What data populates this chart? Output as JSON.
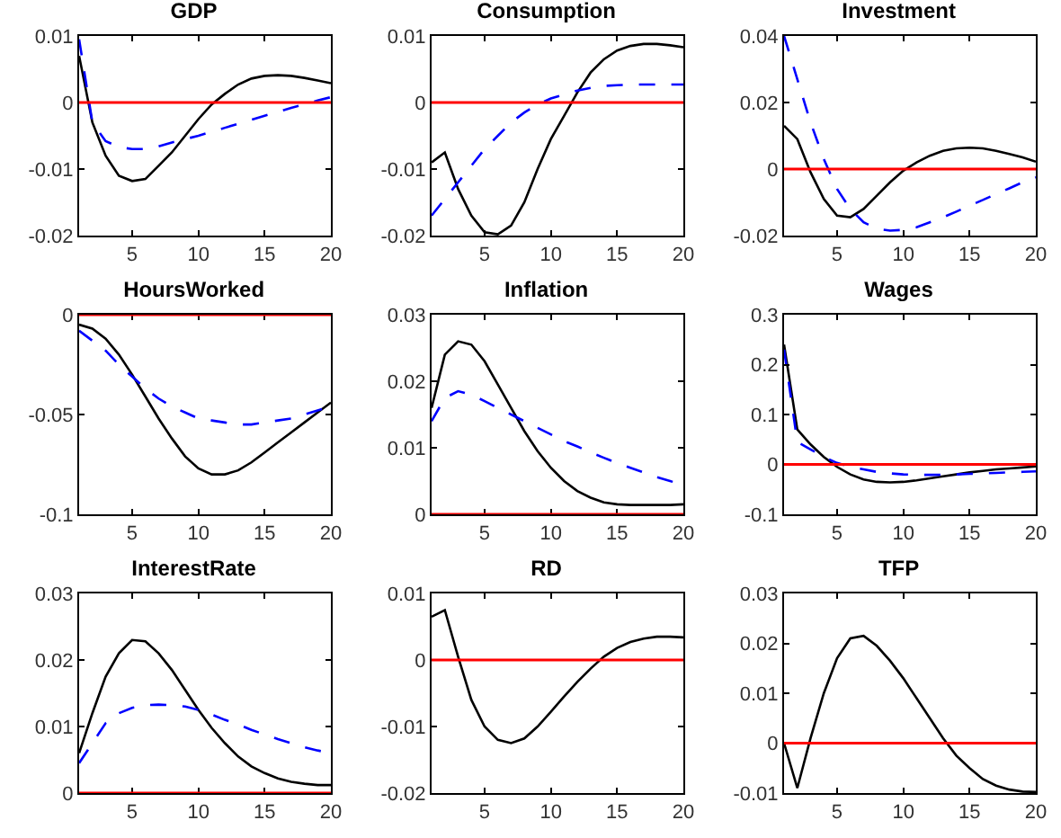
{
  "chart_data": [
    {
      "type": "line",
      "title": "GDP",
      "x": [
        1,
        2,
        3,
        4,
        5,
        6,
        7,
        8,
        9,
        10,
        11,
        12,
        13,
        14,
        15,
        16,
        17,
        18,
        19,
        20
      ],
      "xlim": [
        1,
        20
      ],
      "xticks": [
        5,
        10,
        15,
        20
      ],
      "ylim": [
        -0.02,
        0.01
      ],
      "yticks": [
        -0.02,
        -0.01,
        0,
        0.01
      ],
      "series": [
        {
          "color": "#000000",
          "line_style": "solid",
          "values": [
            0.007,
            -0.003,
            -0.008,
            -0.011,
            -0.0118,
            -0.0115,
            -0.0095,
            -0.0075,
            -0.005,
            -0.0025,
            -0.0003,
            0.0013,
            0.0027,
            0.0036,
            0.004,
            0.0041,
            0.004,
            0.0037,
            0.0033,
            0.0029
          ]
        },
        {
          "color": "#0000ff",
          "line_style": "dashed",
          "values": [
            0.0095,
            -0.003,
            -0.0058,
            -0.0067,
            -0.007,
            -0.007,
            -0.0066,
            -0.006,
            -0.0055,
            -0.005,
            -0.0044,
            -0.0038,
            -0.0032,
            -0.0026,
            -0.002,
            -0.0014,
            -0.0008,
            -0.0003,
            0.0003,
            0.0008
          ]
        }
      ],
      "ref_lines": [
        {
          "axis": "y",
          "value": 0,
          "color": "#ff0000"
        }
      ]
    },
    {
      "type": "line",
      "title": "Consumption",
      "x": [
        1,
        2,
        3,
        4,
        5,
        6,
        7,
        8,
        9,
        10,
        11,
        12,
        13,
        14,
        15,
        16,
        17,
        18,
        19,
        20
      ],
      "xlim": [
        1,
        20
      ],
      "xticks": [
        5,
        10,
        15,
        20
      ],
      "ylim": [
        -0.02,
        0.01
      ],
      "yticks": [
        -0.02,
        -0.01,
        0,
        0.01
      ],
      "series": [
        {
          "color": "#000000",
          "line_style": "solid",
          "values": [
            -0.009,
            -0.0075,
            -0.013,
            -0.017,
            -0.0195,
            -0.0198,
            -0.0185,
            -0.015,
            -0.01,
            -0.0055,
            -0.002,
            0.0015,
            0.0045,
            0.0065,
            0.0078,
            0.0085,
            0.0088,
            0.0088,
            0.0086,
            0.0083
          ]
        },
        {
          "color": "#0000ff",
          "line_style": "dashed",
          "values": [
            -0.017,
            -0.0145,
            -0.012,
            -0.0095,
            -0.007,
            -0.005,
            -0.003,
            -0.0015,
            -0.0003,
            0.0006,
            0.0012,
            0.0018,
            0.0022,
            0.0025,
            0.0026,
            0.0027,
            0.0027,
            0.0027,
            0.0027,
            0.0027
          ]
        }
      ],
      "ref_lines": [
        {
          "axis": "y",
          "value": 0,
          "color": "#ff0000"
        }
      ]
    },
    {
      "type": "line",
      "title": "Investment",
      "x": [
        1,
        2,
        3,
        4,
        5,
        6,
        7,
        8,
        9,
        10,
        11,
        12,
        13,
        14,
        15,
        16,
        17,
        18,
        19,
        20
      ],
      "xlim": [
        1,
        20
      ],
      "xticks": [
        5,
        10,
        15,
        20
      ],
      "ylim": [
        -0.02,
        0.04
      ],
      "yticks": [
        -0.02,
        0,
        0.02,
        0.04
      ],
      "series": [
        {
          "color": "#000000",
          "line_style": "solid",
          "values": [
            0.013,
            0.009,
            -0.001,
            -0.009,
            -0.014,
            -0.0145,
            -0.012,
            -0.008,
            -0.004,
            -0.0005,
            0.002,
            0.004,
            0.0055,
            0.0062,
            0.0064,
            0.0062,
            0.0055,
            0.0045,
            0.0035,
            0.0022
          ]
        },
        {
          "color": "#0000ff",
          "line_style": "dashed",
          "values": [
            0.04,
            0.027,
            0.014,
            0.003,
            -0.006,
            -0.012,
            -0.016,
            -0.018,
            -0.0185,
            -0.0183,
            -0.0175,
            -0.016,
            -0.0145,
            -0.0128,
            -0.011,
            -0.0093,
            -0.0075,
            -0.0058,
            -0.004,
            -0.0025
          ]
        }
      ],
      "ref_lines": [
        {
          "axis": "y",
          "value": 0,
          "color": "#ff0000"
        }
      ]
    },
    {
      "type": "line",
      "title": "HoursWorked",
      "x": [
        1,
        2,
        3,
        4,
        5,
        6,
        7,
        8,
        9,
        10,
        11,
        12,
        13,
        14,
        15,
        16,
        17,
        18,
        19,
        20
      ],
      "xlim": [
        1,
        20
      ],
      "xticks": [
        5,
        10,
        15,
        20
      ],
      "ylim": [
        -0.1,
        0
      ],
      "yticks": [
        -0.1,
        -0.05,
        0
      ],
      "series": [
        {
          "color": "#000000",
          "line_style": "solid",
          "values": [
            -0.005,
            -0.007,
            -0.012,
            -0.02,
            -0.03,
            -0.041,
            -0.052,
            -0.062,
            -0.071,
            -0.077,
            -0.08,
            -0.08,
            -0.078,
            -0.074,
            -0.069,
            -0.064,
            -0.059,
            -0.054,
            -0.049,
            -0.044
          ]
        },
        {
          "color": "#0000ff",
          "line_style": "dashed",
          "values": [
            -0.008,
            -0.013,
            -0.018,
            -0.025,
            -0.031,
            -0.037,
            -0.042,
            -0.046,
            -0.049,
            -0.052,
            -0.053,
            -0.054,
            -0.055,
            -0.055,
            -0.054,
            -0.053,
            -0.052,
            -0.05,
            -0.048,
            -0.046
          ]
        }
      ],
      "ref_lines": [
        {
          "axis": "y",
          "value": 0,
          "color": "#ff0000"
        }
      ]
    },
    {
      "type": "line",
      "title": "Inflation",
      "x": [
        1,
        2,
        3,
        4,
        5,
        6,
        7,
        8,
        9,
        10,
        11,
        12,
        13,
        14,
        15,
        16,
        17,
        18,
        19,
        20
      ],
      "xlim": [
        1,
        20
      ],
      "xticks": [
        5,
        10,
        15,
        20
      ],
      "ylim": [
        0,
        0.03
      ],
      "yticks": [
        0,
        0.01,
        0.02,
        0.03
      ],
      "series": [
        {
          "color": "#000000",
          "line_style": "solid",
          "values": [
            0.016,
            0.024,
            0.026,
            0.0255,
            0.023,
            0.0195,
            0.016,
            0.0125,
            0.0095,
            0.007,
            0.005,
            0.0035,
            0.0025,
            0.0018,
            0.0015,
            0.0014,
            0.0014,
            0.0014,
            0.0014,
            0.0015
          ]
        },
        {
          "color": "#0000ff",
          "line_style": "dashed",
          "values": [
            0.014,
            0.0175,
            0.0185,
            0.018,
            0.017,
            0.016,
            0.015,
            0.014,
            0.013,
            0.012,
            0.011,
            0.0102,
            0.0093,
            0.0085,
            0.0077,
            0.007,
            0.0063,
            0.0056,
            0.005,
            0.0044
          ]
        }
      ],
      "ref_lines": [
        {
          "axis": "y",
          "value": 0,
          "color": "#ff0000"
        }
      ]
    },
    {
      "type": "line",
      "title": "Wages",
      "x": [
        1,
        2,
        3,
        4,
        5,
        6,
        7,
        8,
        9,
        10,
        11,
        12,
        13,
        14,
        15,
        16,
        17,
        18,
        19,
        20
      ],
      "xlim": [
        1,
        20
      ],
      "xticks": [
        5,
        10,
        15,
        20
      ],
      "ylim": [
        -0.1,
        0.3
      ],
      "yticks": [
        -0.1,
        0,
        0.1,
        0.2,
        0.3
      ],
      "series": [
        {
          "color": "#000000",
          "line_style": "solid",
          "values": [
            0.24,
            0.07,
            0.04,
            0.015,
            -0.005,
            -0.02,
            -0.03,
            -0.035,
            -0.036,
            -0.035,
            -0.032,
            -0.028,
            -0.024,
            -0.02,
            -0.016,
            -0.013,
            -0.01,
            -0.008,
            -0.006,
            -0.004
          ]
        },
        {
          "color": "#0000ff",
          "line_style": "dashed",
          "values": [
            0.23,
            0.045,
            0.03,
            0.015,
            0.003,
            -0.005,
            -0.01,
            -0.015,
            -0.018,
            -0.02,
            -0.021,
            -0.021,
            -0.021,
            -0.02,
            -0.019,
            -0.018,
            -0.017,
            -0.016,
            -0.015,
            -0.014
          ]
        }
      ],
      "ref_lines": [
        {
          "axis": "y",
          "value": 0,
          "color": "#ff0000"
        }
      ]
    },
    {
      "type": "line",
      "title": "InterestRate",
      "x": [
        1,
        2,
        3,
        4,
        5,
        6,
        7,
        8,
        9,
        10,
        11,
        12,
        13,
        14,
        15,
        16,
        17,
        18,
        19,
        20
      ],
      "xlim": [
        1,
        20
      ],
      "xticks": [
        5,
        10,
        15,
        20
      ],
      "ylim": [
        0,
        0.03
      ],
      "yticks": [
        0,
        0.01,
        0.02,
        0.03
      ],
      "series": [
        {
          "color": "#000000",
          "line_style": "solid",
          "values": [
            0.006,
            0.012,
            0.0175,
            0.021,
            0.023,
            0.0228,
            0.021,
            0.0185,
            0.0155,
            0.0125,
            0.0098,
            0.0075,
            0.0055,
            0.004,
            0.003,
            0.0022,
            0.0017,
            0.0014,
            0.0012,
            0.0012
          ]
        },
        {
          "color": "#0000ff",
          "line_style": "dashed",
          "values": [
            0.0045,
            0.0075,
            0.0105,
            0.012,
            0.0128,
            0.0132,
            0.0133,
            0.0132,
            0.013,
            0.0125,
            0.0118,
            0.011,
            0.0103,
            0.0095,
            0.0088,
            0.0081,
            0.0075,
            0.0069,
            0.0064,
            0.006
          ]
        }
      ],
      "ref_lines": [
        {
          "axis": "y",
          "value": 0,
          "color": "#ff0000"
        }
      ]
    },
    {
      "type": "line",
      "title": "RD",
      "x": [
        1,
        2,
        3,
        4,
        5,
        6,
        7,
        8,
        9,
        10,
        11,
        12,
        13,
        14,
        15,
        16,
        17,
        18,
        19,
        20
      ],
      "xlim": [
        1,
        20
      ],
      "xticks": [
        5,
        10,
        15,
        20
      ],
      "ylim": [
        -0.02,
        0.01
      ],
      "yticks": [
        -0.02,
        -0.01,
        0,
        0.01
      ],
      "series": [
        {
          "color": "#000000",
          "line_style": "solid",
          "values": [
            0.0065,
            0.0075,
            0.0005,
            -0.006,
            -0.01,
            -0.012,
            -0.0125,
            -0.0118,
            -0.01,
            -0.0078,
            -0.0055,
            -0.0033,
            -0.0013,
            0.0005,
            0.0018,
            0.0027,
            0.0032,
            0.0035,
            0.0035,
            0.0034
          ]
        }
      ],
      "ref_lines": [
        {
          "axis": "y",
          "value": 0,
          "color": "#ff0000"
        }
      ]
    },
    {
      "type": "line",
      "title": "TFP",
      "x": [
        1,
        2,
        3,
        4,
        5,
        6,
        7,
        8,
        9,
        10,
        11,
        12,
        13,
        14,
        15,
        16,
        17,
        18,
        19,
        20
      ],
      "xlim": [
        1,
        20
      ],
      "xticks": [
        5,
        10,
        15,
        20
      ],
      "ylim": [
        -0.01,
        0.03
      ],
      "yticks": [
        -0.01,
        0,
        0.01,
        0.02,
        0.03
      ],
      "series": [
        {
          "color": "#000000",
          "line_style": "solid",
          "values": [
            0,
            -0.009,
            0.001,
            0.01,
            0.017,
            0.021,
            0.0215,
            0.0195,
            0.0165,
            0.013,
            0.009,
            0.005,
            0.001,
            -0.0025,
            -0.005,
            -0.0072,
            -0.0085,
            -0.0093,
            -0.0097,
            -0.0098
          ]
        }
      ],
      "ref_lines": [
        {
          "axis": "y",
          "value": 0,
          "color": "#ff0000"
        }
      ]
    }
  ]
}
